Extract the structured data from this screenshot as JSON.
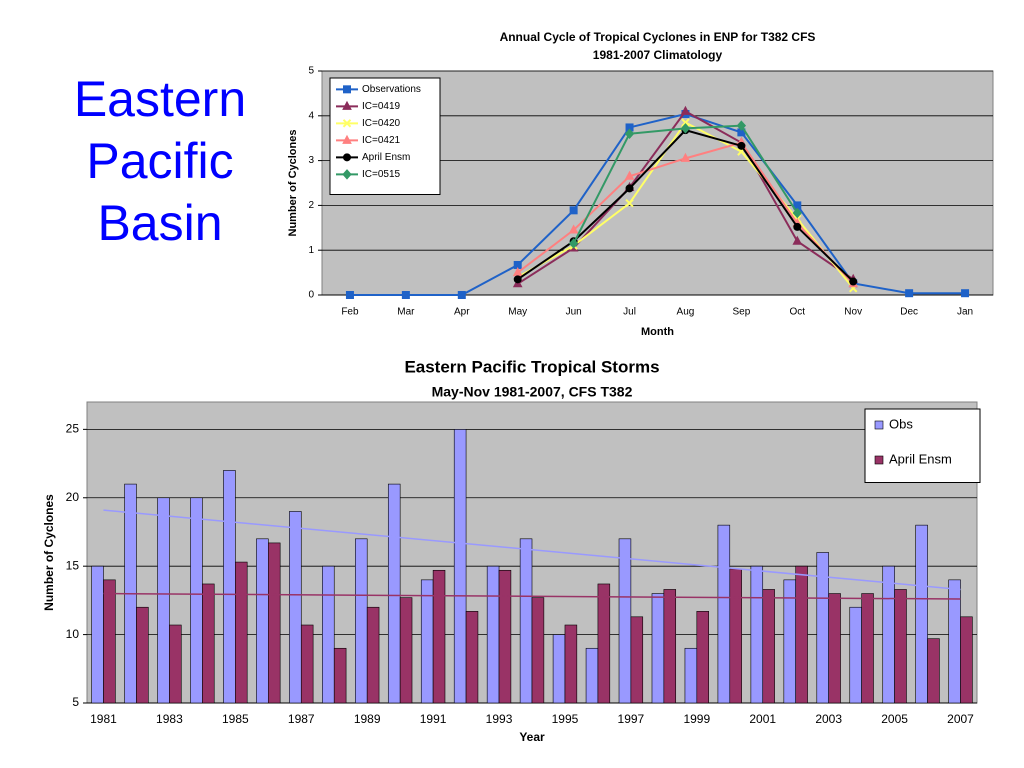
{
  "slide_title": "Eastern Pacific Basin",
  "chart_data": [
    {
      "type": "line",
      "title": "Annual Cycle of Tropical Cyclones in ENP for T382 CFS",
      "subtitle": "1981-2007 Climatology",
      "x_label": "Month",
      "y_label": "Number of Cyclones",
      "categories": [
        "Feb",
        "Mar",
        "Apr",
        "May",
        "Jun",
        "Jul",
        "Aug",
        "Sep",
        "Oct",
        "Nov",
        "Dec",
        "Jan"
      ],
      "ylim": [
        0,
        5
      ],
      "yticks": [
        0,
        1,
        2,
        3,
        4,
        5
      ],
      "grid": true,
      "legend": "upper-left",
      "series": [
        {
          "name": "Observations",
          "color": "#1f62c8",
          "marker": "square",
          "values": [
            0,
            0,
            0,
            0.67,
            1.89,
            3.74,
            4.04,
            3.63,
            2.0,
            0.26,
            0.04,
            0.04
          ]
        },
        {
          "name": "IC=0419",
          "color": "#8b2c5a",
          "marker": "triangle",
          "values": [
            null,
            null,
            null,
            0.25,
            1.05,
            2.4,
            4.1,
            3.4,
            1.2,
            0.35,
            null,
            null
          ]
        },
        {
          "name": "IC=0420",
          "color": "#ffff66",
          "marker": "cross",
          "values": [
            null,
            null,
            null,
            0.4,
            1.1,
            2.05,
            3.85,
            3.2,
            1.7,
            0.15,
            null,
            null
          ]
        },
        {
          "name": "IC=0421",
          "color": "#ff8080",
          "marker": "triangle",
          "values": [
            null,
            null,
            null,
            0.5,
            1.45,
            2.65,
            3.05,
            3.4,
            1.6,
            0.25,
            null,
            null
          ]
        },
        {
          "name": "April Ensm",
          "color": "#000000",
          "marker": "circle",
          "values": [
            null,
            null,
            null,
            0.35,
            1.2,
            2.38,
            3.68,
            3.33,
            1.52,
            0.3,
            null,
            null
          ]
        },
        {
          "name": "IC=0515",
          "color": "#339966",
          "marker": "diamond",
          "values": [
            null,
            null,
            null,
            null,
            1.15,
            3.6,
            3.72,
            3.78,
            1.83,
            null,
            null,
            null
          ]
        }
      ]
    },
    {
      "type": "bar",
      "title": "Eastern Pacific Tropical Storms",
      "subtitle": "May-Nov 1981-2007, CFS T382",
      "x_label": "Year",
      "y_label": "Number of Cyclones",
      "categories": [
        "1981",
        null,
        "1983",
        null,
        "1985",
        null,
        "1987",
        null,
        "1989",
        null,
        "1991",
        null,
        "1993",
        null,
        "1995",
        null,
        "1997",
        null,
        "1999",
        null,
        "2001",
        null,
        "2003",
        null,
        "2005",
        null,
        "2007"
      ],
      "ylim": [
        5,
        27
      ],
      "yticks": [
        5,
        10,
        15,
        20,
        25
      ],
      "grid": true,
      "legend": "upper-right",
      "series": [
        {
          "name": "Obs",
          "color": "#9999ff",
          "trend": [
            19.1,
            13.3
          ],
          "values": [
            15,
            21,
            20,
            20,
            22,
            17,
            19,
            15,
            17,
            21,
            14,
            25,
            15,
            17,
            10,
            9,
            17,
            13,
            9,
            18,
            15,
            14,
            16,
            12,
            15,
            18,
            14
          ]
        },
        {
          "name": "April Ensm",
          "color": "#993366",
          "trend": [
            13.0,
            12.6
          ],
          "values": [
            14,
            12,
            10.7,
            13.7,
            15.3,
            16.7,
            10.7,
            9,
            12,
            12.7,
            14.7,
            11.7,
            14.7,
            12.7,
            10.7,
            13.7,
            11.3,
            13.3,
            11.7,
            14.8,
            13.3,
            15,
            13,
            13,
            13.3,
            9.7,
            11.3
          ]
        }
      ]
    }
  ]
}
